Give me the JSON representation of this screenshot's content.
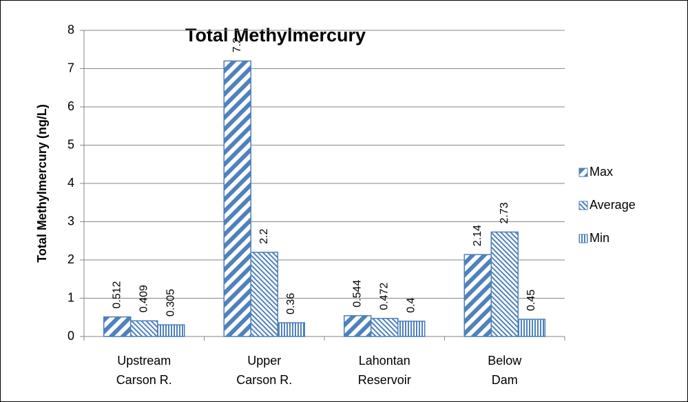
{
  "chart_data": {
    "type": "bar",
    "title": "Total Methylmercury",
    "y_label": "Total Methylmercury (ng/L)",
    "categories": [
      [
        "Upstream",
        "Carson R."
      ],
      [
        "Upper",
        "Carson R."
      ],
      [
        "Lahontan",
        "Reservoir"
      ],
      [
        "Below",
        "Dam"
      ]
    ],
    "series": [
      {
        "name": "Max",
        "color": "#4f81bd",
        "pattern": "wide-diagonal",
        "values": [
          0.512,
          7.2,
          0.544,
          2.14
        ]
      },
      {
        "name": "Average",
        "color": "#4f81bd",
        "pattern": "dark-downward-diagonal",
        "values": [
          0.409,
          2.2,
          0.472,
          2.73
        ]
      },
      {
        "name": "Min",
        "color": "#4f81bd",
        "pattern": "vertical",
        "values": [
          0.305,
          0.36,
          0.4,
          0.45
        ]
      }
    ],
    "ylim": [
      0,
      8
    ],
    "yticks": [
      0,
      1,
      2,
      3,
      4,
      5,
      6,
      7,
      8
    ],
    "grid": true,
    "legend": "right"
  }
}
